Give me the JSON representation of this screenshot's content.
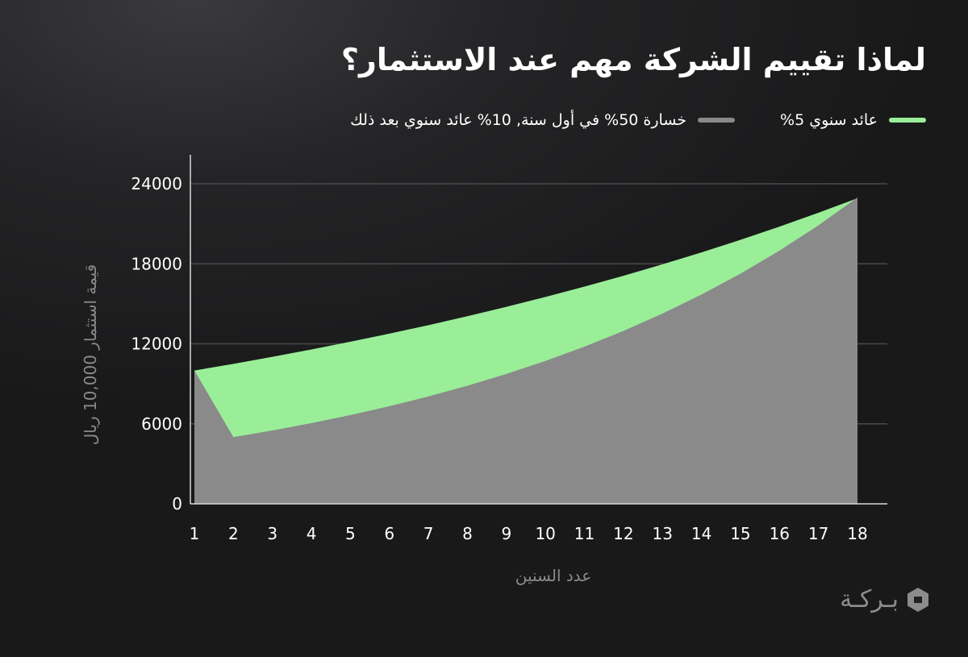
{
  "title": "لماذا تقييم الشركة مهم عند الاستثمار؟",
  "legend": [
    {
      "label": "عائد سنوي 5%",
      "color": "#9aee98"
    },
    {
      "label": "خسارة 50% في أول سنة, 10% عائد سنوي بعد ذلك",
      "color": "#8a8a8a"
    }
  ],
  "brand": {
    "name": "بـركـة",
    "icon": "baraka-logo-icon"
  },
  "chart_data": {
    "type": "area",
    "title": "لماذا تقييم الشركة مهم عند الاستثمار؟",
    "xlabel": "عدد السنين",
    "ylabel": "قيمة استثمار 10,000 ريال",
    "x": [
      1,
      2,
      3,
      4,
      5,
      6,
      7,
      8,
      9,
      10,
      11,
      12,
      13,
      14,
      15,
      16,
      17,
      18
    ],
    "y_ticks": [
      0,
      6000,
      12000,
      18000,
      24000
    ],
    "ylim": [
      0,
      26000
    ],
    "grid": "horizontal",
    "legend_position": "top",
    "series": [
      {
        "name": "عائد سنوي 5%",
        "color": "#9aee98",
        "values": [
          10000,
          10500,
          11025,
          11576,
          12155,
          12763,
          13401,
          14071,
          14775,
          15513,
          16289,
          17103,
          17959,
          18856,
          19799,
          20789,
          21829,
          22920
        ]
      },
      {
        "name": "خسارة 50% في أول سنة, 10% عائد سنوي بعد ذلك",
        "color": "#8a8a8a",
        "values": [
          10000,
          5000,
          5500,
          6050,
          6655,
          7321,
          8053,
          8858,
          9744,
          10718,
          11790,
          12969,
          14266,
          15692,
          17262,
          18988,
          20886,
          22975
        ]
      }
    ]
  }
}
